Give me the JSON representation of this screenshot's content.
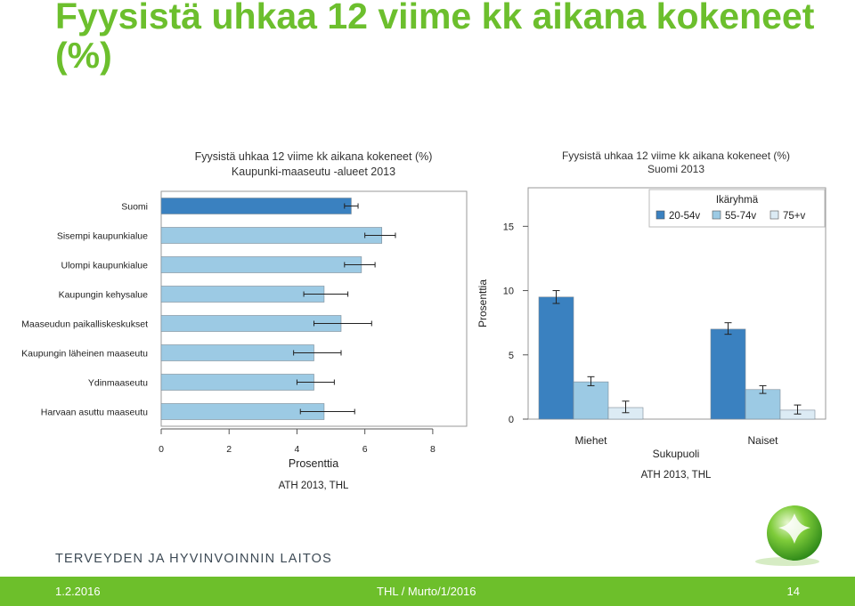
{
  "slide": {
    "title": "Fyysistä uhkaa 12 viime kk aikana kokeneet (%)",
    "organization": "TERVEYDEN JA HYVINVOINNIN LAITOS",
    "footer": {
      "date": "1.2.2016",
      "source": "THL / Murto/1/2016",
      "page": "14"
    }
  },
  "colors": {
    "accent_green": "#6dbf2b",
    "dark_blue": "#3a81c0",
    "mid_blue": "#9ccae4",
    "light_blue": "#dcebf4",
    "title_green": "#6cbf2d"
  },
  "chart_data": [
    {
      "type": "bar",
      "orientation": "horizontal",
      "title": "Fyysistä uhkaa 12 viime kk aikana kokeneet (%)",
      "subtitle": "Kaupunki-maaseutu -alueet 2013",
      "xlabel": "Prosenttia",
      "xlim": [
        0,
        9
      ],
      "xticks": [
        0,
        2,
        4,
        6,
        8
      ],
      "caption": "ATH 2013, THL",
      "categories": [
        "Suomi",
        "Sisempi kaupunkialue",
        "Ulompi kaupunkialue",
        "Kaupungin kehysalue",
        "Maaseudun paikalliskeskukset",
        "Kaupungin läheinen maaseutu",
        "Ydinmaaseutu",
        "Harvaan asuttu maaseutu"
      ],
      "values": [
        5.6,
        6.5,
        5.9,
        4.8,
        5.3,
        4.5,
        4.5,
        4.8
      ],
      "ci_low": [
        5.4,
        6.0,
        5.4,
        4.2,
        4.5,
        3.9,
        4.0,
        4.1
      ],
      "ci_high": [
        5.8,
        6.9,
        6.3,
        5.5,
        6.2,
        5.3,
        5.1,
        5.7
      ],
      "highlight": "Suomi",
      "grid": false
    },
    {
      "type": "bar",
      "orientation": "vertical",
      "title": "Fyysistä uhkaa 12 viime kk aikana kokeneet (%)",
      "subtitle": "Suomi 2013",
      "xlabel": "Sukupuoli",
      "ylabel": "Prosenttia",
      "ylim": [
        0,
        18
      ],
      "yticks": [
        0,
        5,
        10,
        15
      ],
      "caption": "ATH 2013, THL",
      "categories": [
        "Miehet",
        "Naiset"
      ],
      "legend_title": "Ikäryhmä",
      "legend_position": "top-right",
      "series": [
        {
          "name": "20-54v",
          "color": "#3a81c0",
          "values": [
            9.5,
            7.0
          ],
          "ci_low": [
            9.0,
            6.6
          ],
          "ci_high": [
            10.0,
            7.5
          ]
        },
        {
          "name": "55-74v",
          "color": "#9ccae4",
          "values": [
            2.9,
            2.3
          ],
          "ci_low": [
            2.6,
            2.0
          ],
          "ci_high": [
            3.3,
            2.6
          ]
        },
        {
          "name": "75+v",
          "color": "#dcebf4",
          "values": [
            0.9,
            0.7
          ],
          "ci_low": [
            0.5,
            0.4
          ],
          "ci_high": [
            1.4,
            1.1
          ]
        }
      ],
      "grid": false
    }
  ]
}
